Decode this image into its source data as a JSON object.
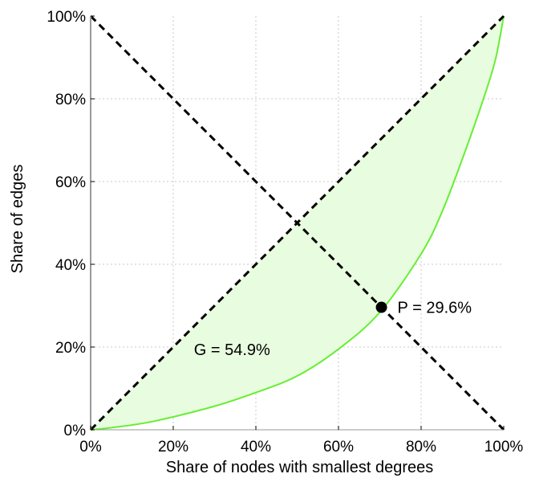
{
  "chart_data": {
    "type": "line",
    "xlabel": "Share of nodes with smallest degrees",
    "ylabel": "Share of edges",
    "xlim": [
      0,
      100
    ],
    "ylim": [
      0,
      100
    ],
    "x_ticks": [
      0,
      20,
      40,
      60,
      80,
      100
    ],
    "y_ticks": [
      0,
      20,
      40,
      60,
      80,
      100
    ],
    "x_tick_labels": [
      "0%",
      "20%",
      "40%",
      "60%",
      "80%",
      "100%"
    ],
    "y_tick_labels": [
      "0%",
      "20%",
      "40%",
      "60%",
      "80%",
      "100%"
    ],
    "grid": true,
    "series": [
      {
        "style": "solid",
        "color": "#66ee33",
        "x": [
          0,
          5,
          15,
          30,
          40,
          50,
          60,
          70,
          80,
          85,
          90,
          95,
          98,
          100
        ],
        "y": [
          0,
          0.5,
          2,
          5.7,
          9,
          13,
          19.5,
          28.4,
          42.5,
          52.5,
          65.5,
          79.7,
          89.5,
          100
        ]
      },
      {
        "style": "dashed",
        "color": "#000000",
        "x": [
          0,
          100
        ],
        "y": [
          0,
          100
        ]
      },
      {
        "style": "dashed",
        "color": "#000000",
        "x": [
          0,
          100
        ],
        "y": [
          100,
          0
        ]
      }
    ],
    "fill_between": {
      "color": "#e8fde0",
      "upper": "diagonal",
      "lower_series_index": 0
    },
    "point": {
      "x": 70.4,
      "y": 29.6,
      "label": "P = 29.6%"
    },
    "annotations": [
      {
        "text": "G = 54.9%",
        "x": 25,
        "y": 20
      }
    ]
  }
}
